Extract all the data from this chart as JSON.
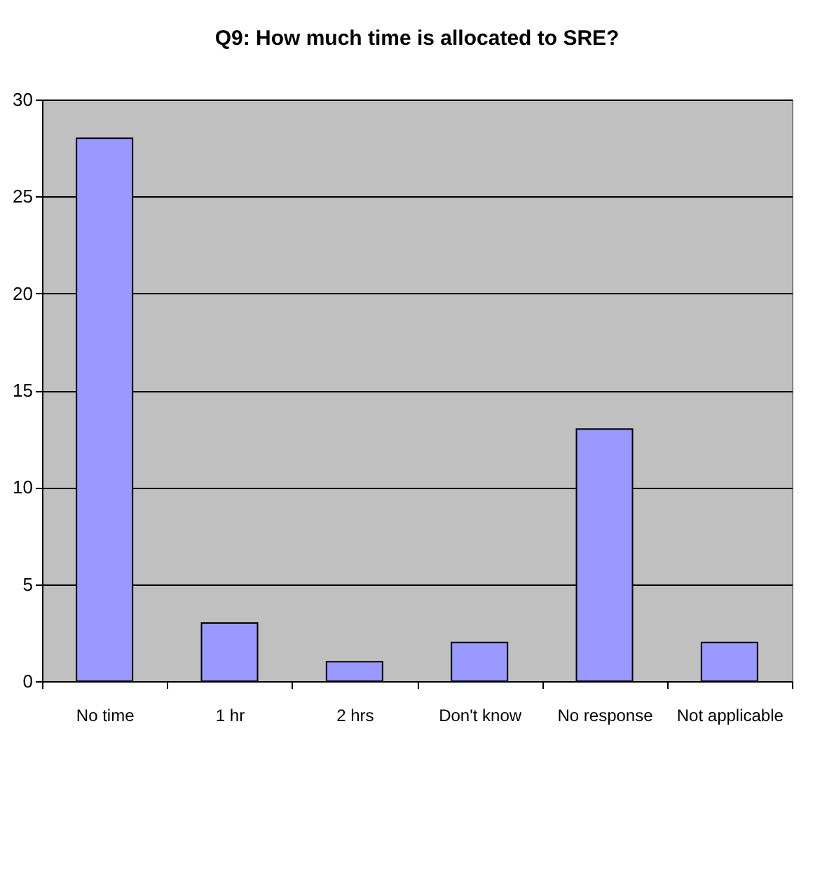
{
  "chart_data": {
    "type": "bar",
    "title": "Q9: How much time is allocated to SRE?",
    "categories": [
      "No time",
      "1 hr",
      "2 hrs",
      "Don't know",
      "No response",
      "Not applicable"
    ],
    "values": [
      28,
      3,
      1,
      2,
      13,
      2
    ],
    "color": "#9999ff",
    "ylim": [
      0,
      30
    ],
    "yticks": [
      0,
      5,
      10,
      15,
      20,
      25,
      30
    ],
    "grid": "y"
  }
}
